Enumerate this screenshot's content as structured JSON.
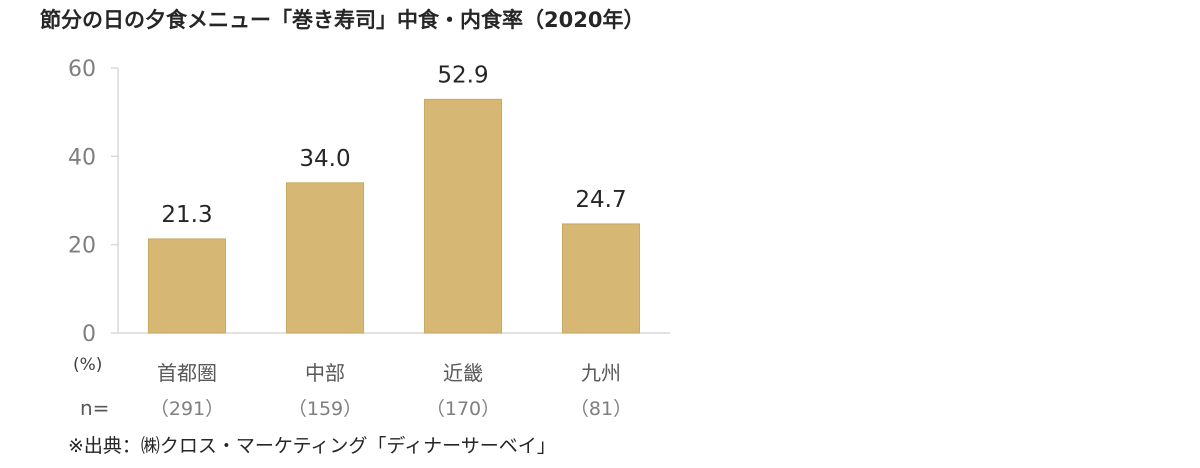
{
  "title": "節分の日の夕食メニュー「巻き寿司」中食・内食率（2020年）",
  "unit_label": "(%)",
  "n_label": "n=",
  "source": "※出典：㈱クロス・マーケティング「ディナーサーベイ」",
  "colors": {
    "bar": "#d6b774",
    "bar_border": "#c9a962",
    "axis": "#d9d9d9"
  },
  "chart_data": {
    "type": "bar",
    "title": "節分の日の夕食メニュー「巻き寿司」中食・内食率（2020年）",
    "categories": [
      "首都圏",
      "中部",
      "近畿",
      "九州"
    ],
    "sample_sizes": [
      "（291）",
      "（159）",
      "（170）",
      "（81）"
    ],
    "values": [
      21.3,
      34.0,
      52.9,
      24.7
    ],
    "value_labels": [
      "21.3",
      "34.0",
      "52.9",
      "24.7"
    ],
    "ylabel": "(%)",
    "ylim": [
      0,
      60
    ],
    "yticks": [
      0,
      20,
      40,
      60
    ],
    "grid": false,
    "legend": "none"
  }
}
